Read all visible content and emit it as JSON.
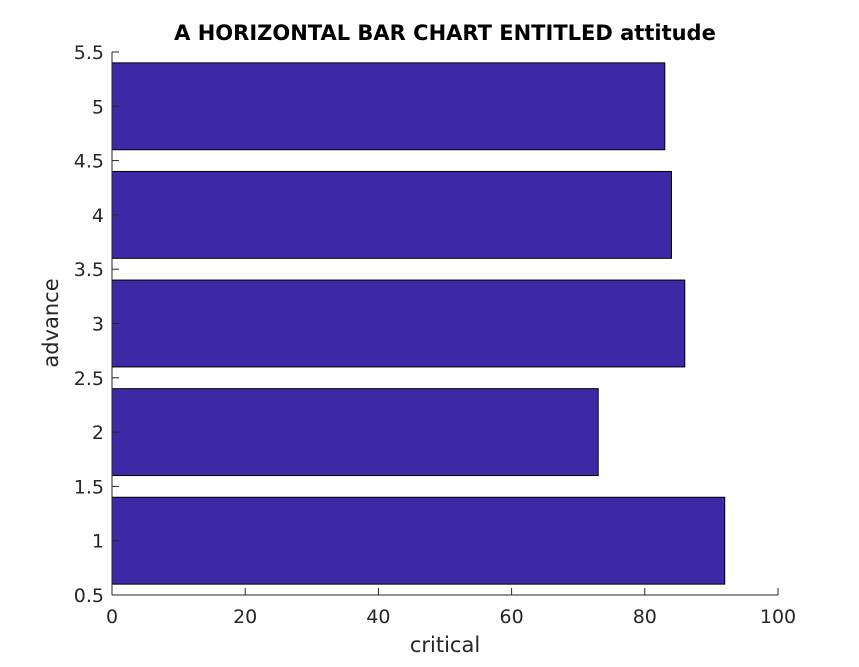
{
  "chart_data": {
    "type": "bar",
    "orientation": "horizontal",
    "title": "A HORIZONTAL BAR CHART ENTITLED attitude",
    "xlabel": "critical",
    "ylabel": "advance",
    "categories": [
      1,
      2,
      3,
      4,
      5
    ],
    "values": [
      92,
      73,
      86,
      84,
      83
    ],
    "xlim": [
      0,
      100
    ],
    "ylim": [
      0.5,
      5.5
    ],
    "xticks": [
      "0",
      "20",
      "40",
      "60",
      "80",
      "100"
    ],
    "yticks": [
      "0.5",
      "1",
      "1.5",
      "2",
      "2.5",
      "3",
      "3.5",
      "4",
      "4.5",
      "5",
      "5.5"
    ],
    "bar_color": "#3d29a6",
    "bar_width": 0.8,
    "grid": false,
    "legend": "none"
  }
}
